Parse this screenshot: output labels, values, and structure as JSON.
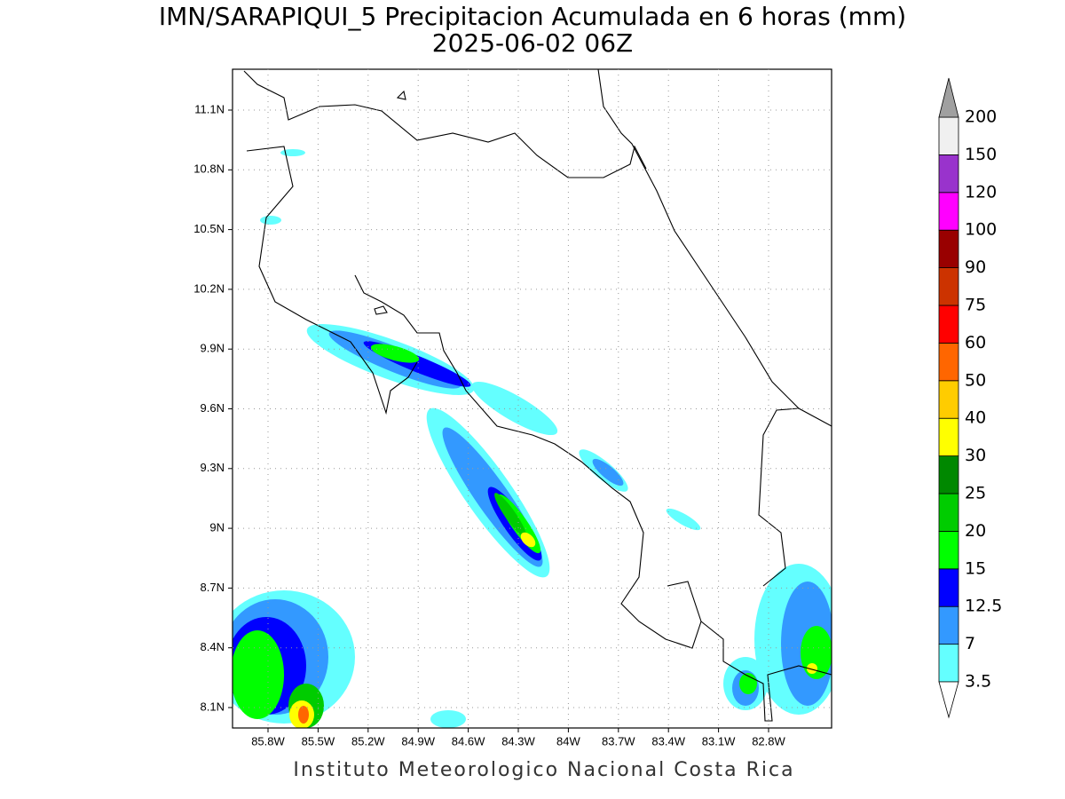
{
  "title": "IMN/SARAPIQUI_5 Precipitacion Acumulada en 6 horas (mm)",
  "subtitle": "2025-06-02 06Z",
  "lat_ticks": [
    "11.1N",
    "10.8N",
    "10.5N",
    "10.2N",
    "9.9N",
    "9.6N",
    "9.3N",
    "9N",
    "8.7N",
    "8.4N",
    "8.1N"
  ],
  "lon_ticks": [
    "85.8W",
    "85.5W",
    "85.2W",
    "84.9W",
    "84.6W",
    "84.3W",
    "84W",
    "83.7W",
    "83.4W",
    "83.1W",
    "82.8W"
  ],
  "colorbar": {
    "levels": [
      3.5,
      7,
      12.5,
      15,
      20,
      25,
      30,
      40,
      50,
      60,
      75,
      90,
      100,
      120,
      150,
      200
    ],
    "colors": [
      "#64ffff",
      "#3399ff",
      "#0000ff",
      "#00ff00",
      "#00cc00",
      "#008800",
      "#ffff00",
      "#ffcc00",
      "#ff6600",
      "#ff0000",
      "#cc3300",
      "#990000",
      "#ff00ff",
      "#9933cc",
      "#f0f0f0"
    ],
    "under_color": "#ffffff",
    "over_color": "#a0a0a0"
  },
  "footer": "Instituto Meteorologico Nacional Costa Rica"
}
